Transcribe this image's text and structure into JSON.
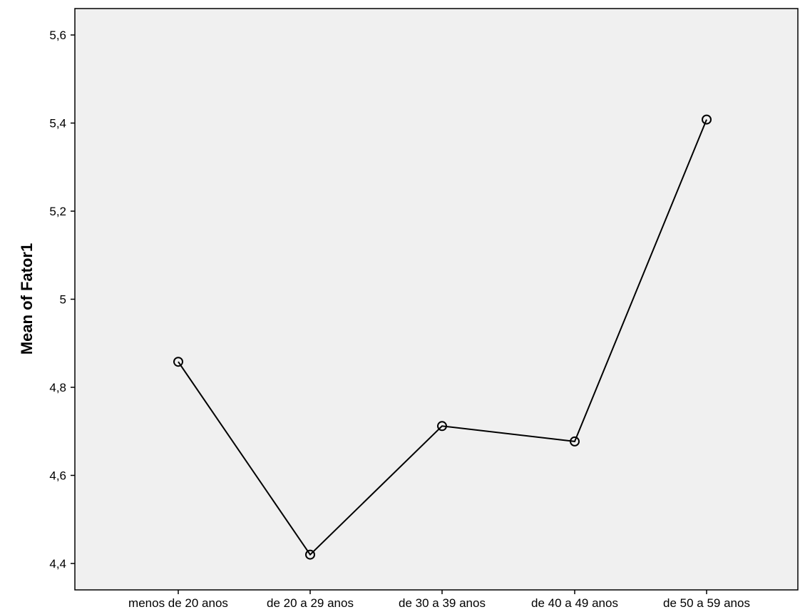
{
  "chart_data": {
    "type": "line",
    "title": "",
    "xlabel": "",
    "ylabel": "Mean of Fator1",
    "categories": [
      "menos de 20 anos",
      "de 20 a 29 anos",
      "de 30 a 39 anos",
      "de 40 a 49 anos",
      "de 50 a 59 anos"
    ],
    "values": [
      4.858,
      4.42,
      4.712,
      4.677,
      5.408
    ],
    "ylim": [
      4.34,
      5.66
    ],
    "yticks": [
      4.4,
      4.6,
      4.8,
      5.0,
      5.2,
      5.4,
      5.6
    ],
    "ytick_labels": [
      "4,4",
      "4,6",
      "4,8",
      "5",
      "5,2",
      "5,4",
      "5,6"
    ],
    "grid": false,
    "legend": "none",
    "marker": "open-circle",
    "colors": {
      "plot_background": "#f0f0f0",
      "line": "#000000",
      "frame": "#000000"
    }
  }
}
